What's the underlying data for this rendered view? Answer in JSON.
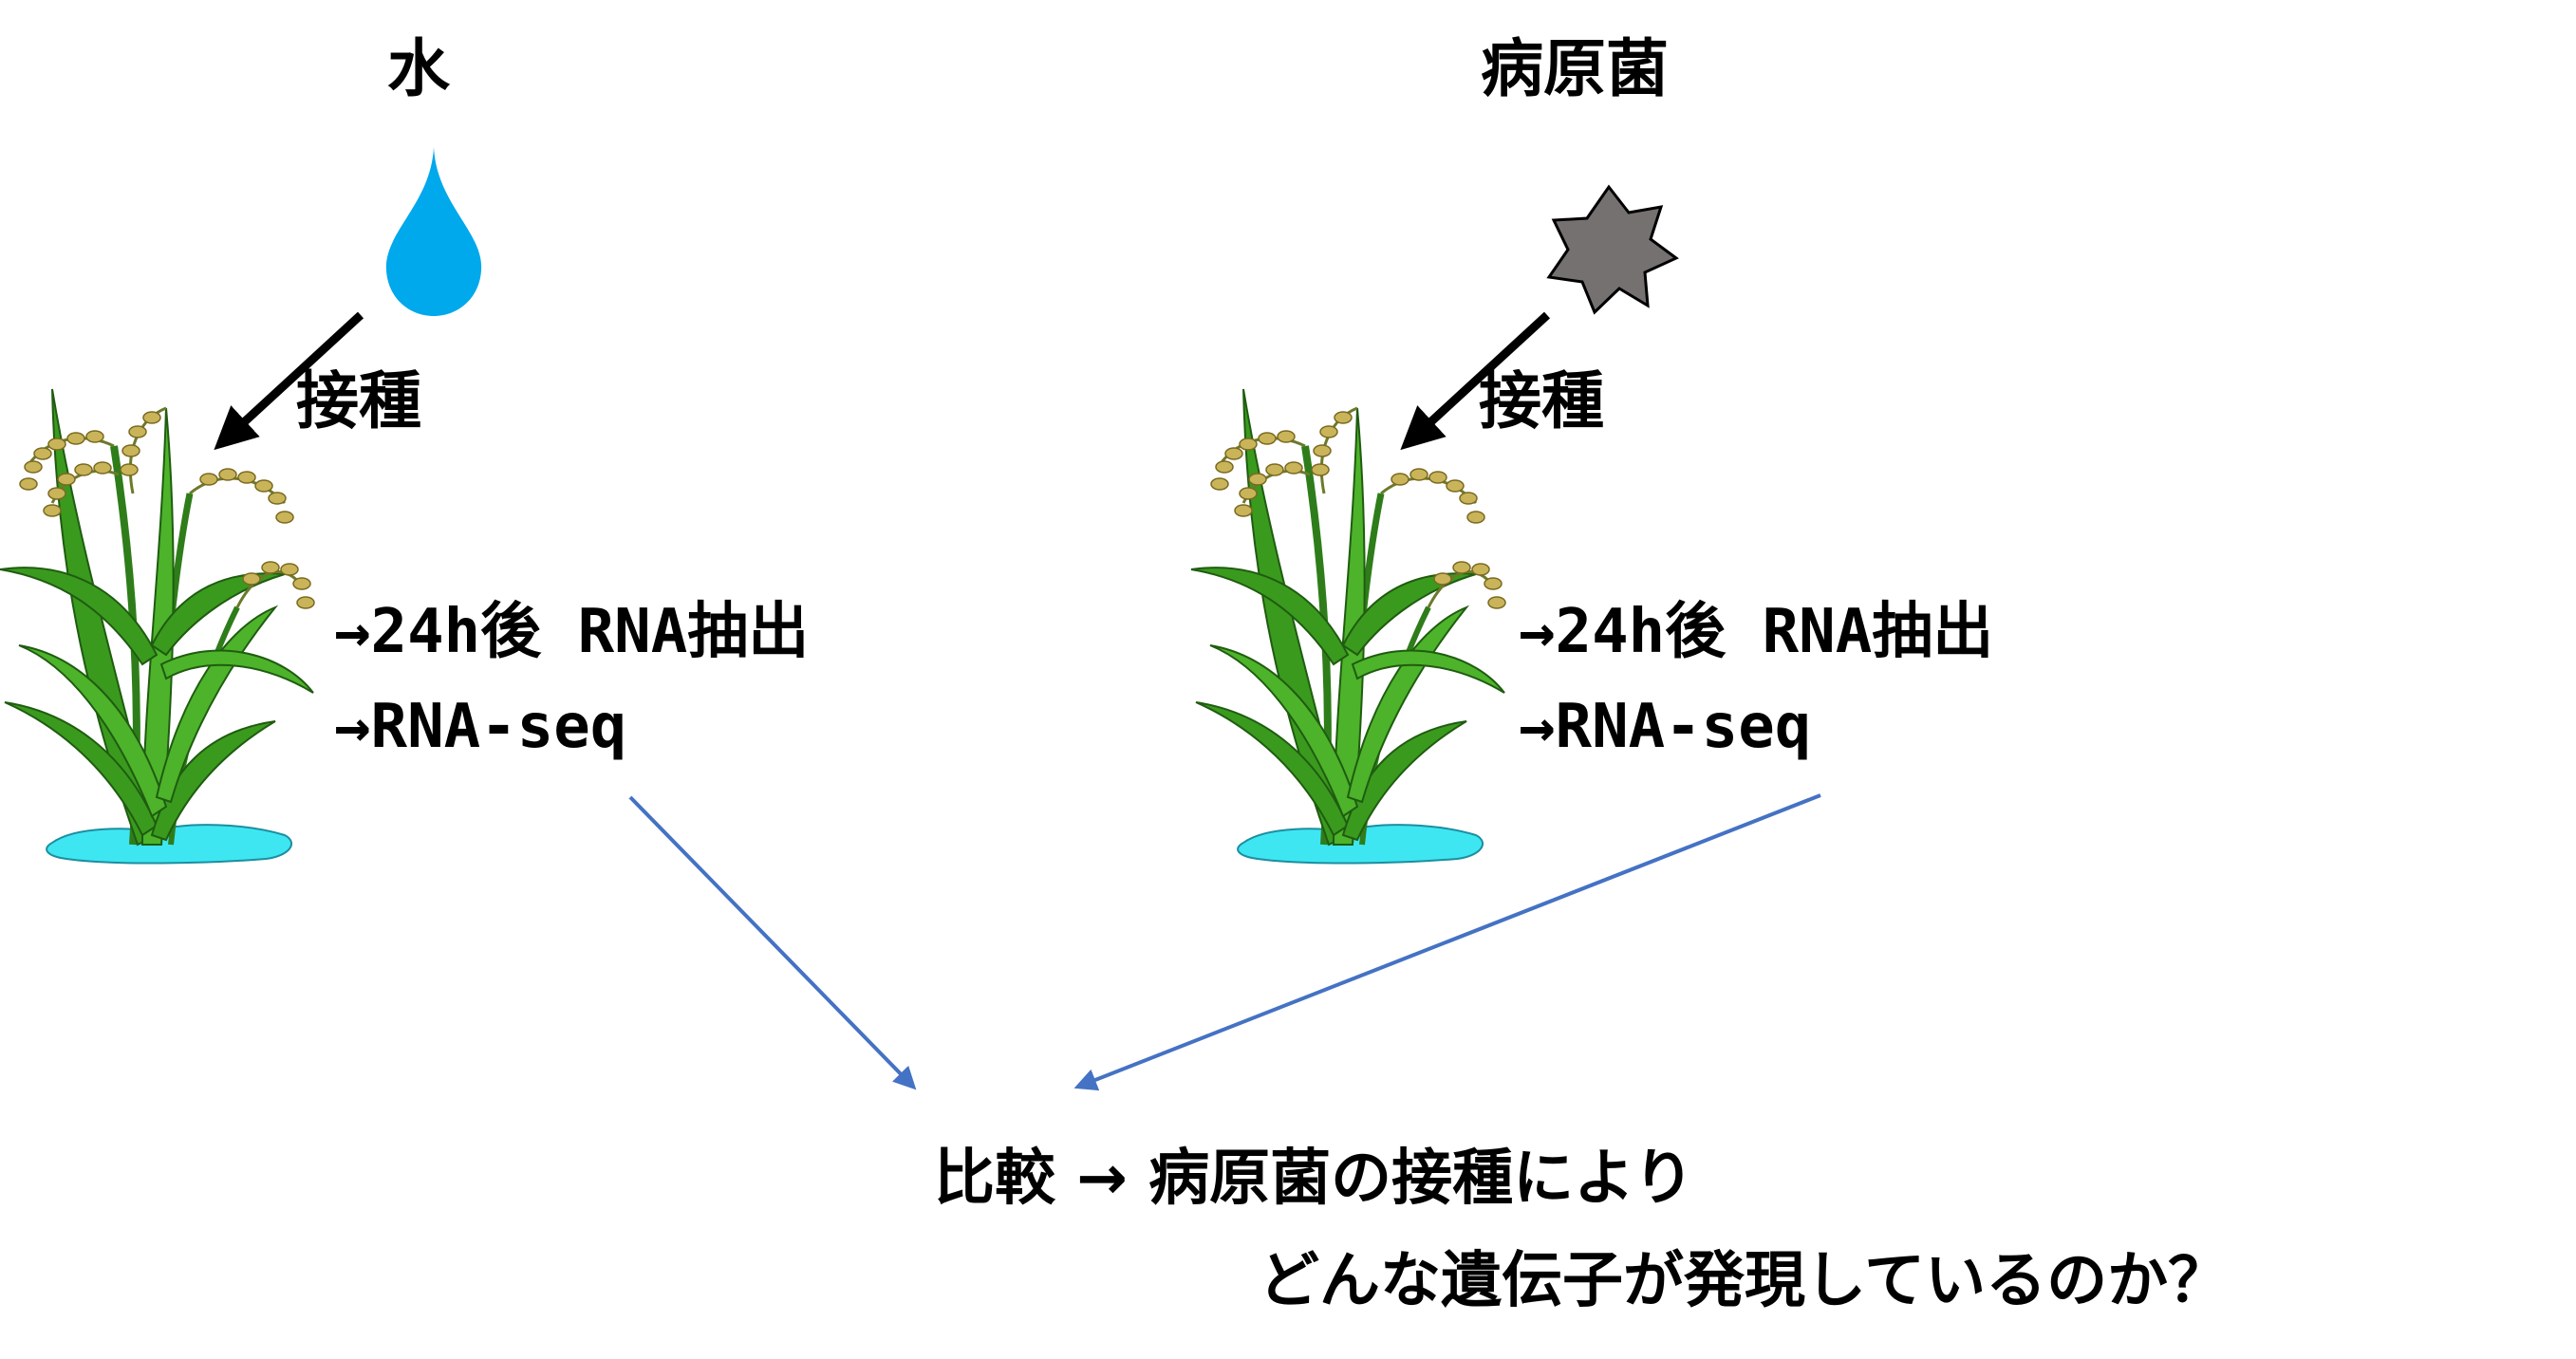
{
  "left_panel": {
    "title": "水",
    "inoculation_label": "接種",
    "step1": "→24h後 RNA抽出",
    "step2": "→RNA-seq"
  },
  "right_panel": {
    "title": "病原菌",
    "inoculation_label": "接種",
    "step1": "→24h後 RNA抽出",
    "step2": "→RNA-seq"
  },
  "result": {
    "line1": "比較 → 病原菌の接種により",
    "line2": "どんな遺伝子が発現しているのか？"
  },
  "icons": {
    "water": "water-drop-icon",
    "pathogen": "pathogen-star-icon",
    "plant": "rice-plant-icon"
  },
  "colors": {
    "water_drop": "#00A8EC",
    "pathogen": "#767171",
    "connector_arrow": "#4472C4",
    "puddle": "#3EE6F2",
    "leaf": "#3A9A1E",
    "grain": "#C9B45A"
  }
}
